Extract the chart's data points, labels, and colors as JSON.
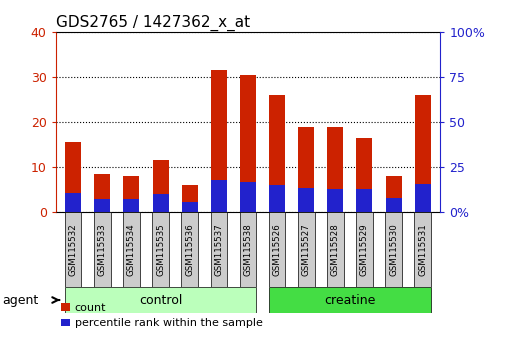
{
  "title": "GDS2765 / 1427362_x_at",
  "samples": [
    "GSM115532",
    "GSM115533",
    "GSM115534",
    "GSM115535",
    "GSM115536",
    "GSM115537",
    "GSM115538",
    "GSM115526",
    "GSM115527",
    "GSM115528",
    "GSM115529",
    "GSM115530",
    "GSM115531"
  ],
  "count": [
    15.5,
    8.5,
    8.0,
    11.5,
    6.0,
    31.5,
    30.5,
    26.0,
    19.0,
    19.0,
    16.5,
    8.0,
    26.0
  ],
  "percentile": [
    11.0,
    7.5,
    7.5,
    10.0,
    5.5,
    18.0,
    17.0,
    15.0,
    13.5,
    13.0,
    13.0,
    8.0,
    15.5
  ],
  "count_color": "#cc2200",
  "percentile_color": "#2222cc",
  "bar_width": 0.55,
  "left_ylim": [
    0,
    40
  ],
  "right_ylim": [
    0,
    100
  ],
  "left_yticks": [
    0,
    10,
    20,
    30,
    40
  ],
  "right_yticks": [
    0,
    25,
    50,
    75,
    100
  ],
  "left_ytick_labels": [
    "0",
    "10",
    "20",
    "30",
    "40"
  ],
  "right_ytick_labels": [
    "0%",
    "25",
    "50",
    "75",
    "100%"
  ],
  "groups": [
    {
      "label": "control",
      "indices": [
        0,
        1,
        2,
        3,
        4,
        5,
        6
      ],
      "color": "#bbffbb"
    },
    {
      "label": "creatine",
      "indices": [
        7,
        8,
        9,
        10,
        11,
        12
      ],
      "color": "#44dd44"
    }
  ],
  "agent_label": "agent",
  "legend_count_label": "count",
  "legend_percentile_label": "percentile rank within the sample",
  "bg_color": "#ffffff",
  "plot_bg_color": "#ffffff",
  "tick_label_bg": "#cccccc",
  "group_bar_light": "#bbffbb",
  "group_bar_dark": "#44dd44"
}
